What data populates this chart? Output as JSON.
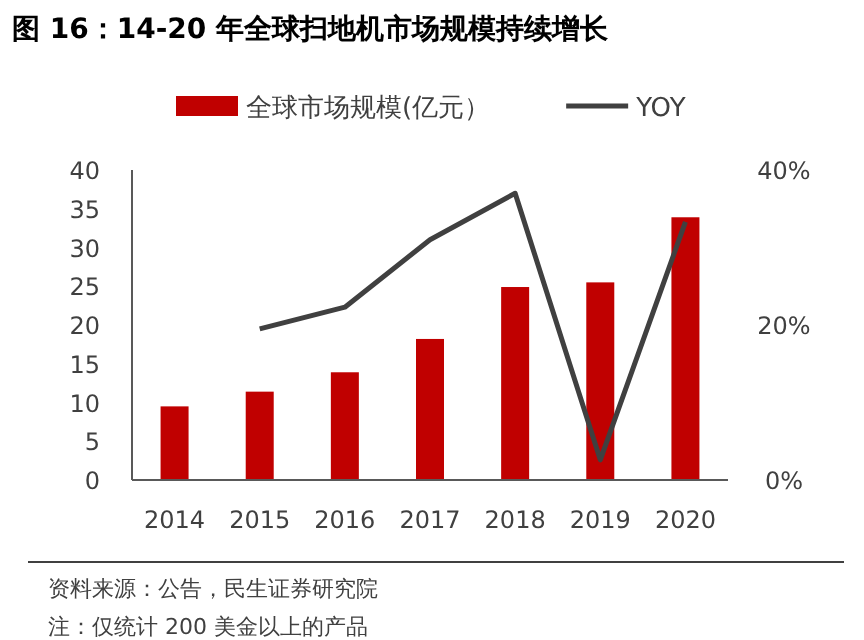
{
  "chart_data": {
    "type": "bar",
    "title": "图 16：14-20 年全球扫地机市场规模持续增长",
    "categories": [
      "2014",
      "2015",
      "2016",
      "2017",
      "2018",
      "2019",
      "2020"
    ],
    "series": [
      {
        "name": "全球市场规模(亿元）",
        "color": "#c00000",
        "values": [
          9.5,
          11.4,
          13.9,
          18.2,
          24.9,
          25.5,
          33.9
        ]
      },
      {
        "name": "YOY",
        "type": "line",
        "axis": "y2",
        "color": "#404040",
        "values": [
          null,
          19.5,
          22.3,
          31.0,
          37.0,
          2.6,
          33.3
        ]
      }
    ],
    "ylim": [
      0,
      40
    ],
    "yticks": [
      0,
      5,
      10,
      15,
      20,
      25,
      30,
      35,
      40
    ],
    "y2lim": [
      0,
      40
    ],
    "y2ticks": [
      {
        "value": 0,
        "label": "0%"
      },
      {
        "value": 20,
        "label": "20%"
      },
      {
        "value": 40,
        "label": "40%"
      }
    ],
    "legend": "top",
    "annotations": [
      "资料来源：公告，民生证券研究院",
      "注：仅统计 200 美金以上的产品"
    ]
  }
}
